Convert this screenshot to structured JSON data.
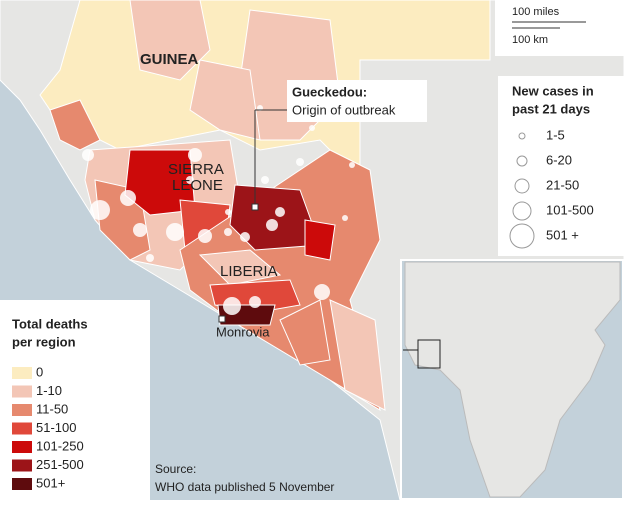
{
  "map": {
    "country_labels": [
      "GUINEA",
      "SIERRA",
      "LEONE",
      "LIBERIA"
    ],
    "callout": {
      "title": "Gueckedou:",
      "text": "Origin of outbreak"
    },
    "city": "Monrovia",
    "scale": {
      "miles": "100 miles",
      "km": "100 km"
    },
    "cases_legend": {
      "title_lines": [
        "New cases in",
        "past 21 days"
      ],
      "items": [
        "1-5",
        "6-20",
        "21-50",
        "101-500",
        "501 +"
      ]
    },
    "deaths_legend": {
      "title_lines": [
        "Total deaths",
        "per region"
      ],
      "items": [
        {
          "label": "0",
          "color": "#fcecc0"
        },
        {
          "label": "1-10",
          "color": "#f3c6b6"
        },
        {
          "label": "11-50",
          "color": "#e6896e"
        },
        {
          "label": "51-100",
          "color": "#e0483a"
        },
        {
          "label": "101-250",
          "color": "#cc0a0a"
        },
        {
          "label": "251-500",
          "color": "#9c1418"
        },
        {
          "label": "501+",
          "color": "#5e0b0d"
        }
      ]
    },
    "source": [
      "Source:",
      "WHO data published 5 November"
    ]
  }
}
